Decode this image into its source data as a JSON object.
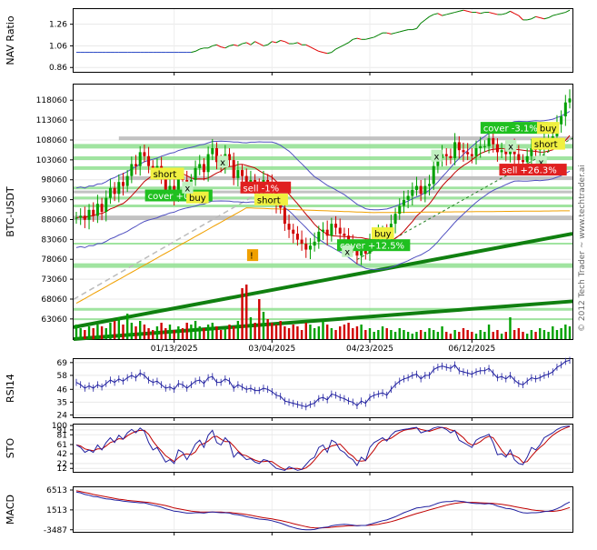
{
  "watermark": "© 2012 Tech Trader ~ www.techtrader.ai",
  "colors": {
    "price_up": "#00a000",
    "price_down": "#d00000",
    "bollinger": "#5050c0",
    "ma_orange": "#f0a000",
    "ma_red": "#c00000",
    "trend_green": "#108010",
    "band_gray": "#b8b8b8",
    "band_green": "#90e090",
    "indicator_blue": "#2020a0",
    "indicator_red": "#c00000",
    "nav_green": "#008000",
    "nav_red": "#e00000"
  },
  "chart_data": [
    {
      "type": "line",
      "ylabel": "NAV Ratio",
      "yticks": [
        "1.26",
        "1.06",
        "0.86"
      ],
      "ylim": [
        0.82,
        1.4
      ],
      "series": [
        {
          "values": [
            1.0,
            1.0,
            1.0,
            1.0,
            1.0,
            1.0,
            1.0,
            1.0,
            1.0,
            1.0,
            1.0,
            1.0,
            1.0,
            1.0,
            1.0,
            1.0,
            1.0,
            1.0,
            1.0,
            1.0,
            1.0,
            1.0,
            1.0,
            1.0,
            1.0,
            1.0,
            1.0,
            1.0,
            1.01,
            1.03,
            1.04,
            1.04,
            1.06,
            1.07,
            1.05,
            1.04,
            1.06,
            1.07,
            1.06,
            1.08,
            1.09,
            1.07,
            1.1,
            1.08,
            1.06,
            1.07,
            1.1,
            1.09,
            1.11,
            1.1,
            1.08,
            1.08,
            1.09,
            1.07,
            1.07,
            1.05,
            1.03,
            1.01,
            1.0,
            0.99,
            1.0,
            1.03,
            1.05,
            1.07,
            1.09,
            1.12,
            1.13,
            1.12,
            1.12,
            1.13,
            1.14,
            1.16,
            1.18,
            1.18,
            1.17,
            1.18,
            1.19,
            1.2,
            1.21,
            1.21,
            1.22,
            1.27,
            1.3,
            1.33,
            1.35,
            1.36,
            1.34,
            1.35,
            1.36,
            1.37,
            1.38,
            1.39,
            1.38,
            1.37,
            1.37,
            1.36,
            1.37,
            1.37,
            1.36,
            1.35,
            1.35,
            1.36,
            1.38,
            1.36,
            1.34,
            1.3,
            1.3,
            1.31,
            1.33,
            1.32,
            1.31,
            1.32,
            1.34,
            1.35,
            1.36,
            1.37,
            1.39
          ]
        }
      ]
    },
    {
      "type": "candlestick",
      "ylabel": "BTC-USDT",
      "yticks": [
        "118060",
        "113060",
        "108060",
        "103060",
        "98060",
        "93060",
        "88060",
        "83060",
        "78060",
        "73060",
        "68060",
        "63060"
      ],
      "ylim": [
        58000,
        122000
      ],
      "xticks": [
        "01/13/2025",
        "03/04/2025",
        "04/23/2025",
        "06/12/2025"
      ],
      "close": [
        88500,
        89000,
        88000,
        90500,
        89000,
        92000,
        90000,
        93500,
        96000,
        94500,
        97500,
        96500,
        99000,
        102000,
        101500,
        105000,
        104000,
        101500,
        100500,
        101500,
        98500,
        95000,
        96500,
        94000,
        99000,
        98000,
        95500,
        98000,
        101000,
        102000,
        100000,
        104500,
        106000,
        102500,
        102000,
        104500,
        103000,
        98500,
        100500,
        99000,
        97500,
        98000,
        96500,
        96000,
        98000,
        97500,
        95500,
        92000,
        91000,
        87000,
        85500,
        84500,
        83000,
        82000,
        80500,
        81500,
        82500,
        85000,
        85500,
        84000,
        87000,
        86000,
        84500,
        84000,
        82000,
        81500,
        79000,
        81000,
        79500,
        83000,
        84000,
        84500,
        85000,
        84000,
        87000,
        89500,
        91500,
        93000,
        94000,
        95500,
        96500,
        94500,
        96500,
        97000,
        101500,
        103500,
        104500,
        104000,
        103500,
        107500,
        105500,
        105000,
        104500,
        104000,
        106000,
        106500,
        106500,
        108500,
        107000,
        105000,
        105500,
        104500,
        106500,
        104500,
        103000,
        102500,
        104000,
        106000,
        105500,
        106000,
        107500,
        108000,
        109000,
        112000,
        114000,
        117500,
        118500
      ],
      "volume": [
        8,
        6,
        5,
        7,
        6,
        8,
        7,
        6,
        9,
        10,
        12,
        8,
        14,
        9,
        7,
        10,
        8,
        6,
        5,
        7,
        9,
        6,
        8,
        5,
        7,
        6,
        9,
        8,
        10,
        7,
        6,
        8,
        9,
        7,
        5,
        6,
        8,
        7,
        10,
        28,
        30,
        12,
        9,
        22,
        15,
        11,
        9,
        8,
        10,
        7,
        6,
        8,
        7,
        5,
        9,
        8,
        6,
        7,
        10,
        8,
        6,
        5,
        7,
        8,
        9,
        6,
        7,
        8,
        5,
        6,
        4,
        5,
        7,
        6,
        5,
        4,
        6,
        5,
        4,
        3,
        4,
        5,
        4,
        6,
        5,
        4,
        7,
        4,
        3,
        5,
        4,
        6,
        5,
        4,
        3,
        5,
        4,
        8,
        4,
        5,
        3,
        4,
        12,
        5,
        6,
        4,
        3,
        5,
        4,
        6,
        5,
        4,
        7,
        5,
        6,
        8,
        7
      ],
      "signals": [
        {
          "label": "short",
          "value": 99500
        },
        {
          "label": "cover +0.4%",
          "value": 94000
        },
        {
          "label": "buy",
          "value": 93500
        },
        {
          "label": "x",
          "value": 96000
        },
        {
          "label": "x",
          "value": 102500
        },
        {
          "label": "sell -1%",
          "value": 96000
        },
        {
          "label": "short",
          "value": 93000
        },
        {
          "label": "!",
          "value": 79000
        },
        {
          "label": "cover +12.5%",
          "value": 81500
        },
        {
          "label": "buy",
          "value": 84500
        },
        {
          "label": "x",
          "value": 80000
        },
        {
          "label": "x",
          "value": 104000
        },
        {
          "label": "cover -3.1%",
          "value": 111000
        },
        {
          "label": "buy",
          "value": 111000
        },
        {
          "label": "x",
          "value": 106500
        },
        {
          "label": "short",
          "value": 107000
        },
        {
          "label": "x",
          "value": 102500
        },
        {
          "label": "sell +26.3%",
          "value": 100500
        }
      ]
    },
    {
      "type": "line",
      "ylabel": "RSI14",
      "yticks": [
        "69",
        "58",
        "46",
        "35",
        "24"
      ],
      "ylim": [
        22,
        72
      ],
      "series": [
        {
          "values": [
            52,
            50,
            47,
            49,
            47,
            50,
            48,
            51,
            54,
            52,
            55,
            53,
            56,
            58,
            56,
            60,
            58,
            54,
            52,
            53,
            50,
            47,
            48,
            46,
            51,
            50,
            47,
            50,
            53,
            54,
            51,
            56,
            57,
            52,
            52,
            55,
            53,
            47,
            50,
            48,
            46,
            47,
            45,
            45,
            47,
            46,
            44,
            41,
            40,
            36,
            35,
            34,
            33,
            32,
            31,
            33,
            34,
            38,
            39,
            37,
            42,
            41,
            39,
            38,
            36,
            35,
            32,
            36,
            34,
            39,
            41,
            42,
            43,
            41,
            46,
            50,
            53,
            55,
            56,
            58,
            59,
            55,
            58,
            58,
            63,
            65,
            66,
            65,
            64,
            67,
            62,
            61,
            60,
            59,
            61,
            62,
            62,
            64,
            60,
            56,
            57,
            55,
            58,
            54,
            51,
            50,
            53,
            56,
            55,
            56,
            58,
            59,
            61,
            65,
            67,
            70,
            71
          ]
        }
      ]
    },
    {
      "type": "line",
      "ylabel": "STO",
      "yticks": [
        "100",
        "91",
        "81",
        "61",
        "42",
        "22",
        "12"
      ],
      "ylim": [
        5,
        102
      ],
      "series": [
        {
          "values": [
            60,
            55,
            45,
            50,
            45,
            60,
            50,
            65,
            75,
            65,
            80,
            72,
            85,
            92,
            85,
            95,
            88,
            65,
            50,
            55,
            40,
            25,
            30,
            22,
            50,
            45,
            30,
            45,
            62,
            70,
            55,
            80,
            90,
            65,
            60,
            75,
            65,
            35,
            45,
            38,
            30,
            32,
            25,
            22,
            30,
            28,
            20,
            12,
            10,
            8,
            15,
            12,
            8,
            10,
            20,
            30,
            35,
            55,
            60,
            45,
            70,
            65,
            50,
            45,
            35,
            30,
            18,
            35,
            28,
            55,
            65,
            70,
            75,
            68,
            80,
            88,
            90,
            92,
            93,
            95,
            96,
            85,
            88,
            90,
            95,
            97,
            96,
            92,
            85,
            90,
            70,
            65,
            60,
            55,
            70,
            75,
            78,
            82,
            65,
            40,
            42,
            35,
            50,
            30,
            22,
            20,
            35,
            55,
            50,
            60,
            75,
            80,
            85,
            92,
            96,
            98,
            99
          ]
        },
        {
          "values": [
            60,
            58,
            52,
            50,
            48,
            52,
            52,
            58,
            65,
            68,
            73,
            72,
            79,
            84,
            88,
            90,
            90,
            82,
            68,
            57,
            48,
            38,
            32,
            26,
            34,
            40,
            42,
            40,
            46,
            60,
            63,
            68,
            76,
            78,
            72,
            67,
            67,
            58,
            48,
            40,
            38,
            33,
            29,
            26,
            26,
            27,
            26,
            20,
            14,
            10,
            11,
            12,
            12,
            10,
            13,
            20,
            29,
            40,
            50,
            53,
            58,
            60,
            62,
            53,
            43,
            37,
            28,
            27,
            28,
            39,
            50,
            63,
            70,
            71,
            74,
            80,
            86,
            90,
            92,
            93,
            95,
            92,
            90,
            88,
            91,
            94,
            96,
            95,
            91,
            89,
            82,
            75,
            65,
            60,
            62,
            67,
            74,
            78,
            75,
            62,
            49,
            39,
            42,
            38,
            34,
            24,
            26,
            37,
            47,
            55,
            62,
            72,
            80,
            86,
            91,
            95,
            98
          ]
        }
      ]
    },
    {
      "type": "line",
      "ylabel": "MACD",
      "yticks": [
        "6513",
        "1513",
        "-3487"
      ],
      "ylim": [
        -4000,
        7200
      ],
      "series": [
        {
          "values": [
            6000,
            5800,
            5400,
            5200,
            4900,
            4800,
            4500,
            4300,
            4200,
            4000,
            3900,
            3700,
            3600,
            3500,
            3400,
            3300,
            3300,
            3000,
            2700,
            2500,
            2200,
            1800,
            1500,
            1200,
            1100,
            900,
            700,
            700,
            800,
            800,
            700,
            900,
            1000,
            900,
            800,
            800,
            700,
            400,
            300,
            100,
            -200,
            -400,
            -600,
            -800,
            -900,
            -1000,
            -1200,
            -1500,
            -1800,
            -2200,
            -2600,
            -2900,
            -3200,
            -3400,
            -3500,
            -3500,
            -3400,
            -3100,
            -2900,
            -2800,
            -2500,
            -2300,
            -2200,
            -2100,
            -2200,
            -2300,
            -2500,
            -2400,
            -2400,
            -2100,
            -1800,
            -1500,
            -1200,
            -1000,
            -600,
            -200,
            300,
            800,
            1200,
            1600,
            2000,
            2100,
            2300,
            2400,
            2800,
            3200,
            3500,
            3600,
            3600,
            3800,
            3700,
            3600,
            3400,
            3200,
            3100,
            3100,
            3000,
            3100,
            2900,
            2500,
            2200,
            1900,
            1800,
            1500,
            1100,
            800,
            700,
            800,
            800,
            900,
            1100,
            1200,
            1400,
            1800,
            2300,
            3000,
            3500
          ]
        },
        {
          "values": [
            6300,
            6100,
            5900,
            5700,
            5400,
            5200,
            5000,
            4800,
            4600,
            4400,
            4200,
            4100,
            3900,
            3800,
            3700,
            3600,
            3500,
            3400,
            3200,
            3000,
            2800,
            2600,
            2300,
            2000,
            1800,
            1600,
            1400,
            1200,
            1100,
            1000,
            950,
            950,
            950,
            950,
            950,
            900,
            850,
            750,
            650,
            500,
            350,
            150,
            -50,
            -250,
            -450,
            -600,
            -750,
            -950,
            -1150,
            -1400,
            -1650,
            -1950,
            -2200,
            -2450,
            -2700,
            -2900,
            -3000,
            -3050,
            -3000,
            -2950,
            -2850,
            -2750,
            -2650,
            -2550,
            -2450,
            -2450,
            -2450,
            -2400,
            -2400,
            -2350,
            -2250,
            -2100,
            -1900,
            -1700,
            -1450,
            -1150,
            -800,
            -450,
            -100,
            250,
            600,
            900,
            1200,
            1500,
            1800,
            2100,
            2400,
            2700,
            2950,
            3150,
            3300,
            3400,
            3400,
            3400,
            3350,
            3300,
            3250,
            3200,
            3150,
            3050,
            2900,
            2750,
            2550,
            2350,
            2150,
            1950,
            1750,
            1550,
            1400,
            1300,
            1200,
            1150,
            1150,
            1250,
            1450,
            1750,
            2100
          ]
        }
      ]
    }
  ]
}
